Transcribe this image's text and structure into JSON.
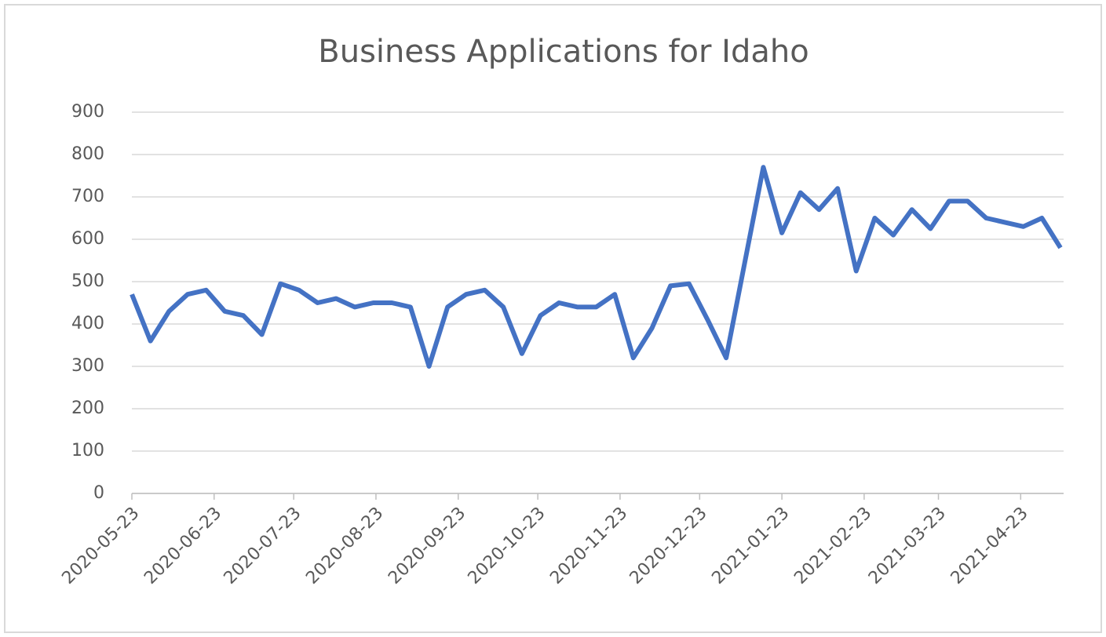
{
  "chart_data": {
    "type": "line",
    "title": "Business Applications for Idaho",
    "x": [
      "2020-05-23",
      "2020-05-30",
      "2020-06-06",
      "2020-06-13",
      "2020-06-20",
      "2020-06-27",
      "2020-07-04",
      "2020-07-11",
      "2020-07-18",
      "2020-07-25",
      "2020-08-01",
      "2020-08-08",
      "2020-08-15",
      "2020-08-22",
      "2020-08-29",
      "2020-09-05",
      "2020-09-12",
      "2020-09-19",
      "2020-09-26",
      "2020-10-03",
      "2020-10-10",
      "2020-10-17",
      "2020-10-24",
      "2020-10-31",
      "2020-11-07",
      "2020-11-14",
      "2020-11-21",
      "2020-11-28",
      "2020-12-05",
      "2020-12-12",
      "2020-12-19",
      "2020-12-26",
      "2021-01-02",
      "2021-01-09",
      "2021-01-16",
      "2021-01-23",
      "2021-01-30",
      "2021-02-06",
      "2021-02-13",
      "2021-02-20",
      "2021-02-27",
      "2021-03-06",
      "2021-03-13",
      "2021-03-20",
      "2021-03-27",
      "2021-04-03",
      "2021-04-10",
      "2021-04-17",
      "2021-04-24",
      "2021-05-01",
      "2021-05-08"
    ],
    "series": [
      {
        "name": "Business Applications",
        "color": "#4472c4",
        "values": [
          470,
          360,
          430,
          470,
          480,
          430,
          420,
          375,
          495,
          480,
          450,
          460,
          440,
          450,
          450,
          440,
          300,
          440,
          470,
          480,
          440,
          330,
          420,
          450,
          440,
          440,
          470,
          320,
          390,
          490,
          495,
          410,
          320,
          545,
          770,
          615,
          710,
          670,
          720,
          525,
          650,
          610,
          670,
          625,
          690,
          690,
          650,
          640,
          630,
          650,
          580
        ]
      }
    ],
    "xlim": [
      "2020-05-23",
      "2021-05-08"
    ],
    "xticks": [
      "2020-05-23",
      "2020-06-23",
      "2020-07-23",
      "2020-08-23",
      "2020-09-23",
      "2020-10-23",
      "2020-11-23",
      "2020-12-23",
      "2021-01-23",
      "2021-02-23",
      "2021-03-23",
      "2021-04-23"
    ],
    "ylim": [
      0,
      900
    ],
    "yticks": [
      0,
      100,
      200,
      300,
      400,
      500,
      600,
      700,
      800,
      900
    ],
    "grid": true
  }
}
